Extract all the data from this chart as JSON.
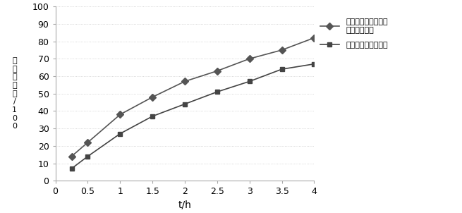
{
  "x": [
    0.25,
    0.5,
    1.0,
    1.5,
    2.0,
    2.5,
    3.0,
    3.5,
    4.0
  ],
  "series1_y": [
    14,
    22,
    38,
    48,
    57,
    63,
    70,
    75,
    82
  ],
  "series2_y": [
    7,
    14,
    27,
    37,
    44,
    51,
    57,
    64,
    67
  ],
  "series1_label": "盐酸氨酮戊酸温度敏\n感型原位凝胶",
  "series2_label": "市售盐酸氨酮戊酸散",
  "xlabel": "t/h",
  "ylabel": "累计释放率/100",
  "xlim": [
    0,
    4.0
  ],
  "ylim": [
    0,
    100
  ],
  "xticks": [
    0,
    0.5,
    1.0,
    1.5,
    2.0,
    2.5,
    3.0,
    3.5,
    4.0
  ],
  "yticks": [
    0,
    10,
    20,
    30,
    40,
    50,
    60,
    70,
    80,
    90,
    100
  ],
  "series1_color": "#555555",
  "series2_color": "#444444",
  "marker1": "D",
  "marker2": "s",
  "linewidth": 1.2,
  "markersize": 5,
  "grid_color": "#cccccc",
  "grid_linestyle": "dotted"
}
